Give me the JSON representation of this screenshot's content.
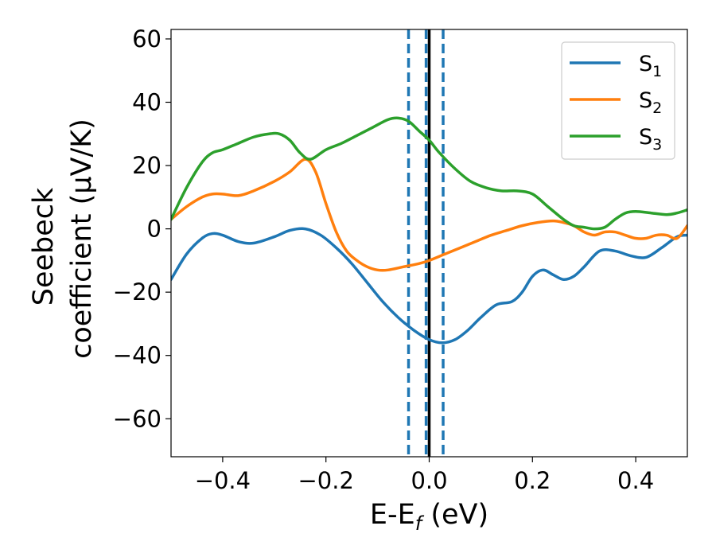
{
  "chart_data": {
    "type": "line",
    "xlabel": "E-E",
    "xlabel_sub": "f",
    "xlabel_tail": " (eV)",
    "ylabel_line1": "Seebeck",
    "ylabel_line2": "coefficient  (μV/K)",
    "xlim": [
      -0.5,
      0.5
    ],
    "ylim": [
      -72,
      63
    ],
    "xticks": [
      -0.4,
      -0.2,
      0.0,
      0.2,
      0.4
    ],
    "xtick_labels": [
      "−0.4",
      "−0.2",
      "0.0",
      "0.2",
      "0.4"
    ],
    "yticks": [
      -60,
      -40,
      -20,
      0,
      20,
      40,
      60
    ],
    "ytick_labels": [
      "−60",
      "−40",
      "−20",
      "0",
      "20",
      "40",
      "60"
    ],
    "grid": false,
    "legend_position": "top-right",
    "vertical_lines": [
      {
        "x": -0.04,
        "style": "dashed",
        "color": "#1f77b4"
      },
      {
        "x": -0.006,
        "style": "dashed",
        "color": "#1f77b4"
      },
      {
        "x": 0.027,
        "style": "dashed",
        "color": "#1f77b4"
      },
      {
        "x": 0.0,
        "style": "solid",
        "color": "#000000"
      }
    ],
    "series": [
      {
        "name": "S",
        "name_sub": "1",
        "color": "#1f77b4",
        "x": [
          -0.5,
          -0.47,
          -0.44,
          -0.42,
          -0.4,
          -0.37,
          -0.34,
          -0.3,
          -0.27,
          -0.24,
          -0.21,
          -0.18,
          -0.15,
          -0.12,
          -0.09,
          -0.06,
          -0.03,
          0.0,
          0.025,
          0.05,
          0.075,
          0.1,
          0.13,
          0.16,
          0.18,
          0.2,
          0.22,
          0.24,
          0.26,
          0.28,
          0.3,
          0.33,
          0.36,
          0.39,
          0.42,
          0.45,
          0.48,
          0.5
        ],
        "y": [
          -16,
          -8,
          -3,
          -1.5,
          -2,
          -4,
          -4.5,
          -2.5,
          -0.5,
          0,
          -2,
          -6,
          -11,
          -17,
          -23,
          -28,
          -32,
          -35,
          -36,
          -35,
          -32,
          -28,
          -24,
          -23,
          -20,
          -15,
          -13,
          -14.5,
          -16,
          -15,
          -12,
          -7,
          -7,
          -8.5,
          -9,
          -6,
          -2.5,
          -2
        ]
      },
      {
        "name": "S",
        "name_sub": "2",
        "color": "#ff7f0e",
        "x": [
          -0.5,
          -0.47,
          -0.44,
          -0.42,
          -0.4,
          -0.37,
          -0.34,
          -0.3,
          -0.27,
          -0.24,
          -0.22,
          -0.2,
          -0.18,
          -0.16,
          -0.14,
          -0.12,
          -0.1,
          -0.08,
          -0.05,
          -0.02,
          0.0,
          0.03,
          0.06,
          0.09,
          0.12,
          0.15,
          0.18,
          0.21,
          0.24,
          0.26,
          0.28,
          0.3,
          0.32,
          0.34,
          0.36,
          0.38,
          0.4,
          0.42,
          0.44,
          0.46,
          0.48,
          0.5
        ],
        "y": [
          3,
          7,
          10,
          11,
          11,
          10.5,
          12,
          15,
          18,
          22,
          18,
          8,
          -1,
          -7,
          -10,
          -12,
          -13,
          -13,
          -12,
          -11,
          -10,
          -8,
          -6,
          -4,
          -2,
          -0.5,
          1,
          2,
          2.5,
          2,
          1,
          -1,
          -2,
          -1,
          -1,
          -2,
          -3,
          -3,
          -2,
          -2,
          -3,
          1
        ]
      },
      {
        "name": "S",
        "name_sub": "3",
        "color": "#2ca02c",
        "x": [
          -0.5,
          -0.47,
          -0.44,
          -0.42,
          -0.4,
          -0.37,
          -0.34,
          -0.31,
          -0.29,
          -0.27,
          -0.25,
          -0.23,
          -0.2,
          -0.17,
          -0.14,
          -0.11,
          -0.08,
          -0.06,
          -0.04,
          -0.02,
          0.0,
          0.02,
          0.05,
          0.08,
          0.11,
          0.14,
          0.17,
          0.2,
          0.23,
          0.26,
          0.28,
          0.3,
          0.32,
          0.34,
          0.36,
          0.38,
          0.4,
          0.43,
          0.46,
          0.48,
          0.5
        ],
        "y": [
          3,
          13,
          21,
          24,
          25,
          27,
          29,
          30,
          30,
          28,
          24,
          22,
          25,
          27,
          29.5,
          32,
          34.5,
          35,
          34,
          31,
          28,
          24,
          19,
          15,
          13,
          12,
          12,
          11,
          7,
          3,
          1,
          0.5,
          0,
          0.5,
          3,
          5,
          5.5,
          5,
          4.5,
          5,
          6
        ]
      }
    ]
  }
}
